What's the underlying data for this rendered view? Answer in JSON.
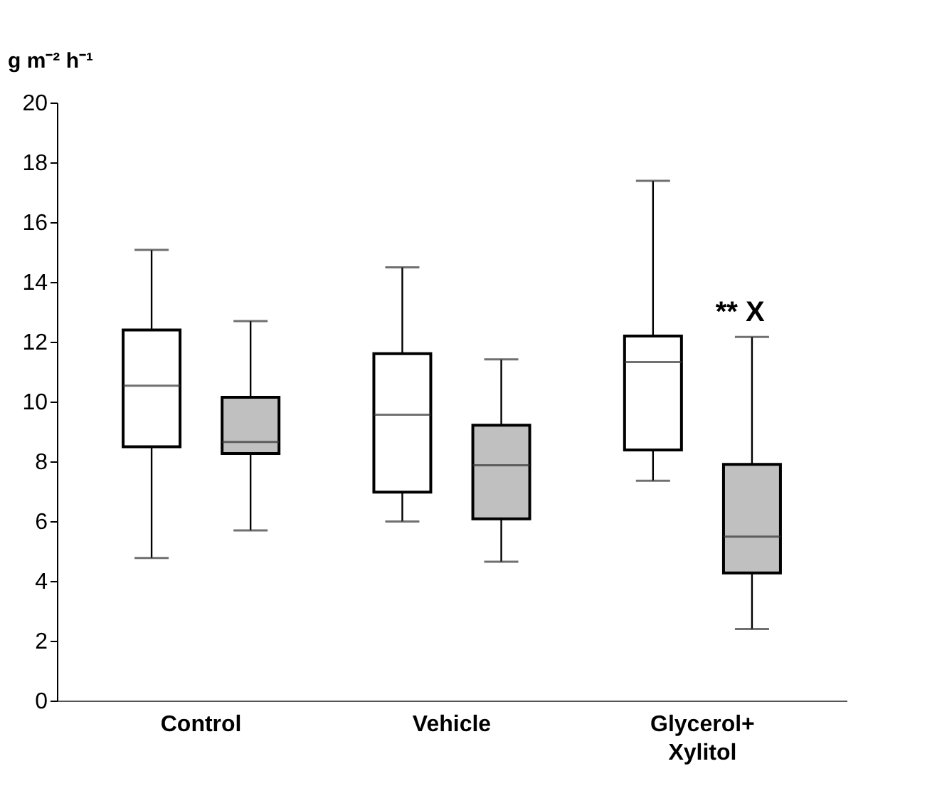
{
  "chart_data": {
    "type": "box",
    "ylabel": "g m⁻² h⁻¹",
    "categories": [
      "Control",
      "Vehicle",
      "Glycerol+\nXylitol"
    ],
    "ylim": [
      0,
      20
    ],
    "yticks": [
      0,
      2,
      4,
      6,
      8,
      10,
      12,
      14,
      16,
      18,
      20
    ],
    "grid": false,
    "series": [
      {
        "color": "#ffffff",
        "boxes": [
          {
            "low": 4.77,
            "q1": 8.49,
            "median": 10.53,
            "q3": 12.39,
            "high": 15.07
          },
          {
            "low": 5.99,
            "q1": 6.97,
            "median": 9.56,
            "q3": 11.6,
            "high": 14.49
          },
          {
            "low": 7.35,
            "q1": 8.38,
            "median": 11.32,
            "q3": 12.19,
            "high": 17.38
          }
        ]
      },
      {
        "color": "#c0c0c0",
        "boxes": [
          {
            "low": 5.69,
            "q1": 8.26,
            "median": 8.65,
            "q3": 10.14,
            "high": 12.69
          },
          {
            "low": 4.64,
            "q1": 6.08,
            "median": 7.87,
            "q3": 9.21,
            "high": 11.41
          },
          {
            "low": 2.39,
            "q1": 4.27,
            "median": 5.48,
            "q3": 7.9,
            "high": 12.16
          }
        ]
      }
    ],
    "annotations": [
      "** X"
    ]
  }
}
